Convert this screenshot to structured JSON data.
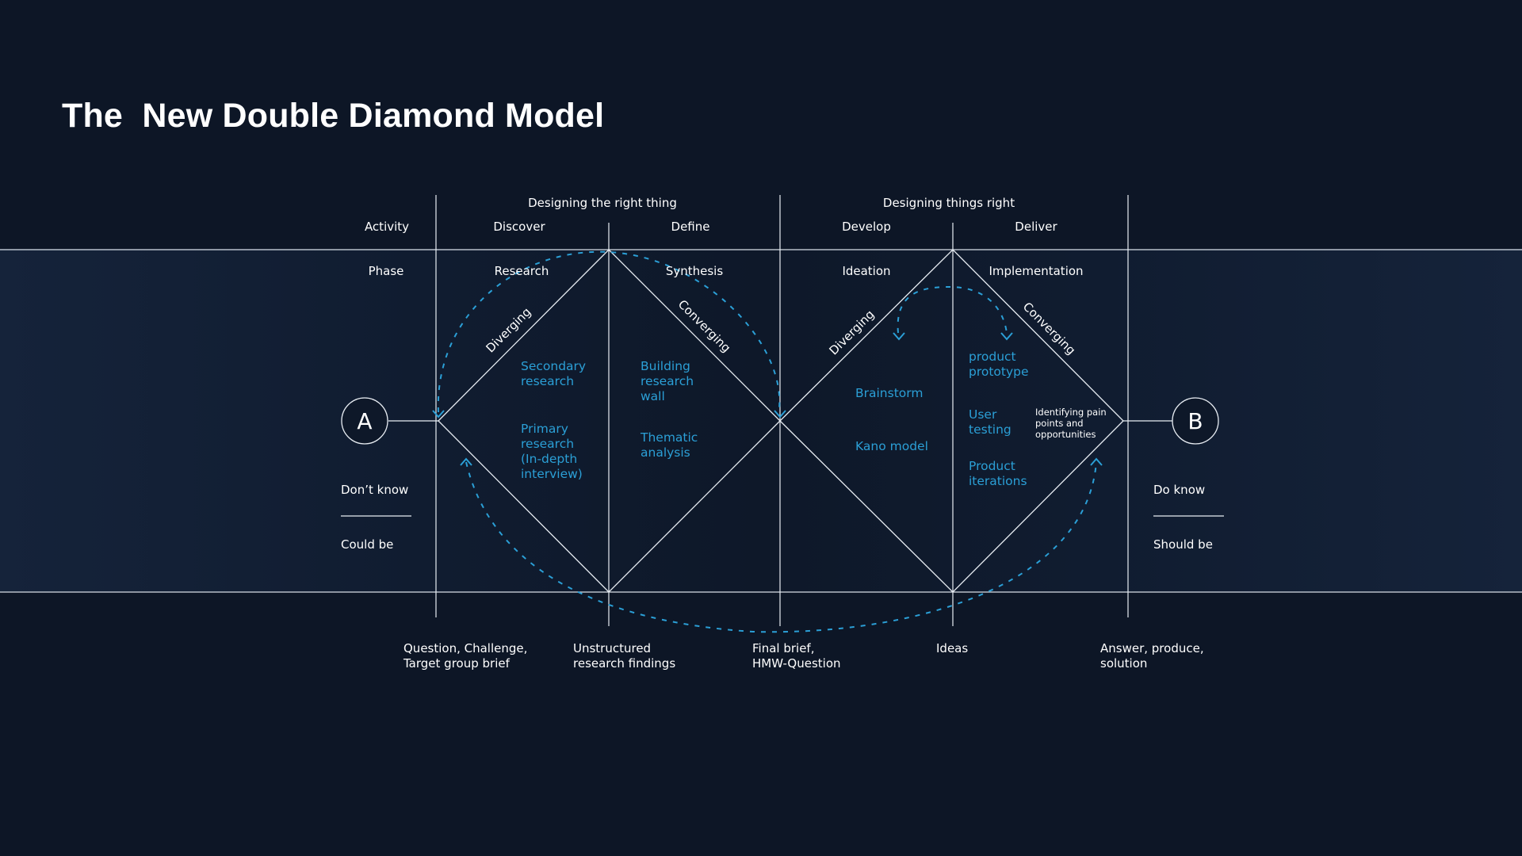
{
  "title": "The  New Double Diamond Model",
  "sections": {
    "right_thing": "Designing the right thing",
    "things_right": "Designing things right"
  },
  "row_labels": {
    "activity": "Activity",
    "phase": "Phase"
  },
  "activities": [
    "Discover",
    "Define",
    "Develop",
    "Deliver"
  ],
  "phases": [
    "Research",
    "Synthesis",
    "Ideation",
    "Implementation"
  ],
  "slopes": [
    "Diverging",
    "Converging",
    "Diverging",
    "Converging"
  ],
  "start": {
    "letter": "A",
    "top": "Don’t know",
    "bottom": "Could be"
  },
  "end": {
    "letter": "B",
    "top": "Do know",
    "bottom": "Should be"
  },
  "discover_methods": [
    [
      "Secondary",
      "research"
    ],
    [
      "Primary",
      "research",
      "(In-depth",
      "interview)"
    ]
  ],
  "define_methods": [
    [
      "Building",
      "research",
      "wall"
    ],
    [
      "Thematic",
      "analysis"
    ]
  ],
  "develop_methods": [
    [
      "Brainstorm"
    ],
    [
      "Kano model"
    ]
  ],
  "deliver_methods": [
    [
      "product",
      "prototype"
    ],
    [
      "User",
      "testing"
    ],
    [
      "Product",
      "iterations"
    ]
  ],
  "deliver_note": [
    "Identifying pain",
    "points and",
    "opportunities"
  ],
  "outputs": [
    [
      "Question, Challenge,",
      "Target group brief"
    ],
    [
      "Unstructured",
      "research findings"
    ],
    [
      "Final brief,",
      "HMW-Question"
    ],
    [
      "Ideas"
    ],
    [
      "Answer, produce,",
      "solution"
    ]
  ],
  "colors": {
    "background": "#0d1626",
    "accent": "#2b9fd6",
    "line": "#e8edf3"
  }
}
